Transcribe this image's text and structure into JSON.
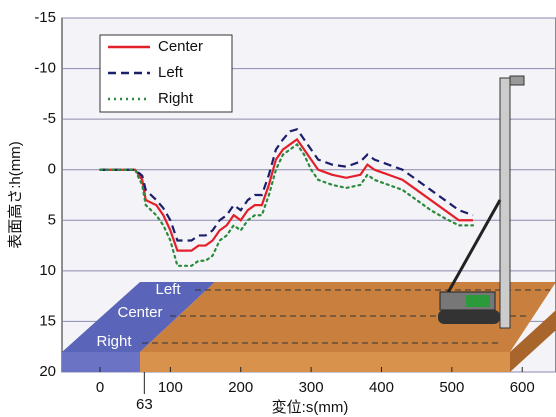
{
  "chart_data": {
    "type": "line",
    "xlabel": "変位:s(mm)",
    "ylabel": "表面高さ:h(mm)",
    "x": [
      0,
      50,
      55,
      60,
      65,
      80,
      90,
      100,
      110,
      130,
      140,
      150,
      160,
      170,
      180,
      190,
      200,
      210,
      220,
      230,
      240,
      250,
      260,
      270,
      280,
      290,
      300,
      310,
      330,
      350,
      370,
      380,
      390,
      410,
      430,
      450,
      470,
      490,
      510,
      530
    ],
    "series": [
      {
        "name": "Center",
        "color": "#e3202a",
        "dash": "solid",
        "values": [
          0,
          0,
          0.5,
          1,
          3,
          3.5,
          4.5,
          6,
          8,
          8,
          7.5,
          7.5,
          7,
          6,
          5.5,
          4.5,
          5,
          4,
          3.5,
          3.5,
          1.5,
          -1,
          -2,
          -2.5,
          -3,
          -2,
          -1,
          0,
          0.5,
          0.8,
          0.5,
          -0.5,
          0,
          0.5,
          1,
          2,
          3,
          4,
          5,
          5
        ]
      },
      {
        "name": "Left",
        "color": "#1c1f6b",
        "dash": "dashed",
        "values": [
          0,
          0,
          0.3,
          0.6,
          2,
          3,
          3.8,
          5,
          7,
          7,
          6.5,
          6.5,
          6,
          5,
          4.5,
          3.5,
          4,
          3,
          2.5,
          2.5,
          0.5,
          -2,
          -3,
          -3.8,
          -4,
          -3,
          -2,
          -1,
          -0.5,
          -0.3,
          -0.8,
          -1.5,
          -1,
          -0.5,
          0,
          1,
          2,
          3,
          4,
          4.5
        ]
      },
      {
        "name": "Right",
        "color": "#2b8a3c",
        "dash": "dotted",
        "values": [
          0,
          0,
          0.8,
          1.5,
          3.5,
          4.5,
          5.5,
          7,
          9.5,
          9.5,
          9,
          9,
          8.5,
          7,
          6.5,
          5.5,
          6,
          5,
          4.5,
          4.5,
          2.5,
          0,
          -1.5,
          -2,
          -2.5,
          -1.5,
          0,
          1,
          1.5,
          1.8,
          1.5,
          0.5,
          1,
          1.5,
          2,
          3,
          4,
          4.8,
          5.5,
          5.5
        ]
      }
    ],
    "xlim": [
      -54,
      648
    ],
    "xticks": [
      0,
      100,
      200,
      300,
      400,
      500,
      600
    ],
    "marker_tick": 63,
    "ylim": [
      20,
      -15
    ],
    "yticks": [
      -15,
      -10,
      -5,
      0,
      5,
      10,
      15,
      20
    ],
    "y_inverted": true,
    "grid": true,
    "legend": "upper left",
    "illustration_labels": [
      "Left",
      "Center",
      "Right"
    ]
  }
}
